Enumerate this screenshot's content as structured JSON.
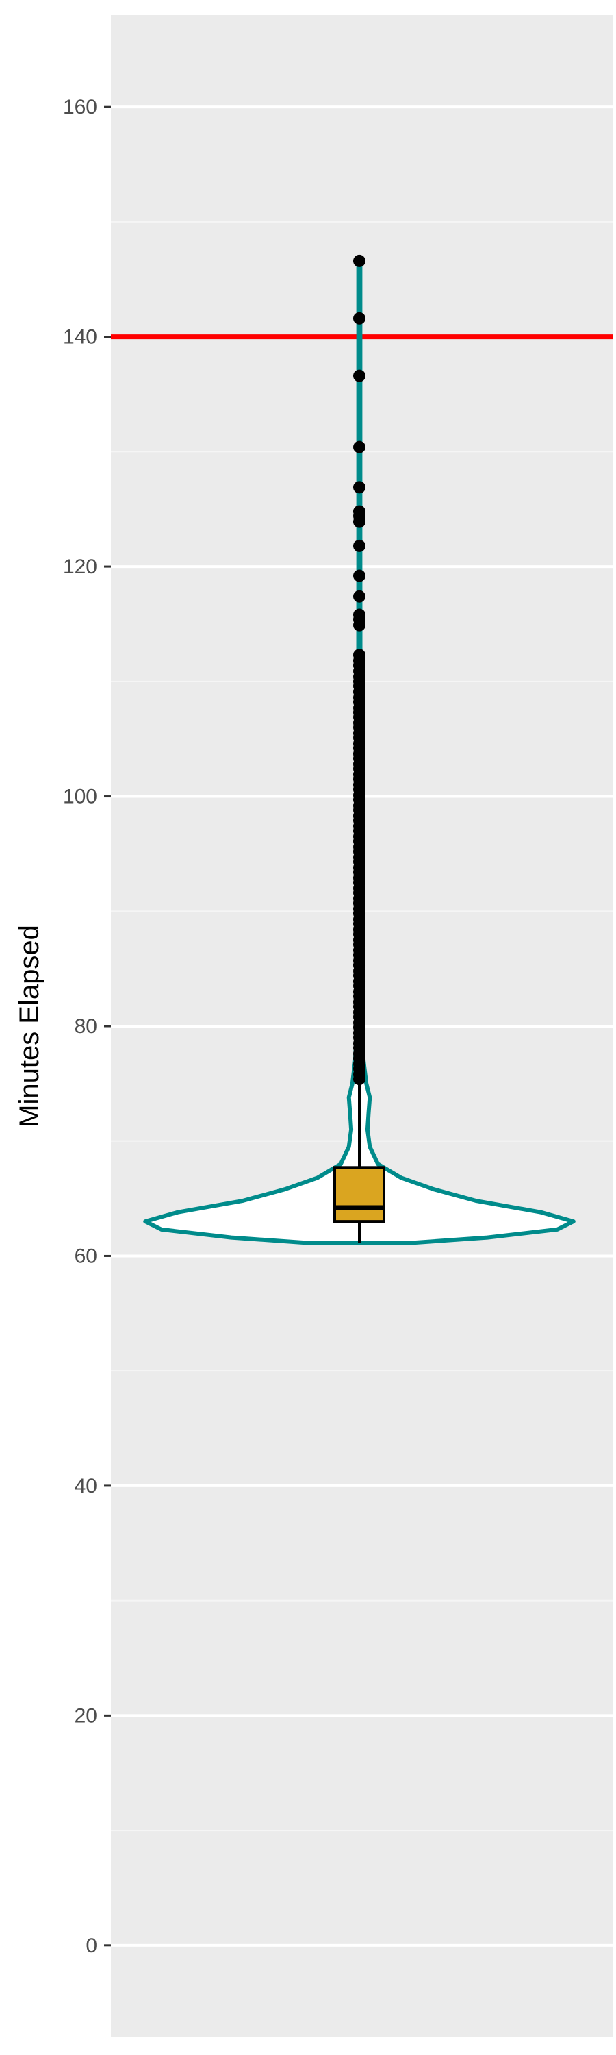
{
  "chart_data": {
    "type": "violin",
    "title": "",
    "xlabel": "",
    "ylabel": "Minutes Elapsed",
    "ylim": [
      -8,
      168
    ],
    "y_ticks": [
      0,
      20,
      40,
      60,
      80,
      100,
      120,
      140,
      160
    ],
    "y_minor_ticks": [
      10,
      30,
      50,
      70,
      90,
      110,
      130,
      150
    ],
    "grid": true,
    "legend": "none",
    "reference_line": {
      "y": 140,
      "color": "#ff0000"
    },
    "violin": {
      "color": "#008b8b",
      "fill": "#ffffff",
      "min": 61.1,
      "max": 146.6,
      "profile": [
        {
          "y": 61.1,
          "w": 0.2
        },
        {
          "y": 61.6,
          "w": 0.55
        },
        {
          "y": 62.3,
          "w": 0.85
        },
        {
          "y": 63.0,
          "w": 0.92
        },
        {
          "y": 63.8,
          "w": 0.78
        },
        {
          "y": 64.8,
          "w": 0.5
        },
        {
          "y": 65.8,
          "w": 0.32
        },
        {
          "y": 66.8,
          "w": 0.18
        },
        {
          "y": 68.0,
          "w": 0.08
        },
        {
          "y": 69.5,
          "w": 0.045
        },
        {
          "y": 71.0,
          "w": 0.035
        },
        {
          "y": 72.5,
          "w": 0.04
        },
        {
          "y": 73.8,
          "w": 0.045
        },
        {
          "y": 75.0,
          "w": 0.03
        },
        {
          "y": 77.0,
          "w": 0.018
        },
        {
          "y": 80.0,
          "w": 0.012
        },
        {
          "y": 83.0,
          "w": 0.01
        },
        {
          "y": 86.0,
          "w": 0.008
        },
        {
          "y": 90.0,
          "w": 0.006
        },
        {
          "y": 100.0,
          "w": 0.005
        },
        {
          "y": 120.0,
          "w": 0.004
        },
        {
          "y": 146.6,
          "w": 0.004
        }
      ]
    },
    "box": {
      "fill": "#daa520",
      "q1": 63.0,
      "median": 64.2,
      "q3": 67.7,
      "whisker_low": 61.1,
      "whisker_high": 75.0
    },
    "outliers": [
      146.6,
      141.6,
      136.6,
      130.4,
      126.9,
      124.8,
      124.4,
      123.9,
      121.8,
      119.2,
      117.4,
      115.8,
      115.4,
      114.9,
      112.3,
      111.8,
      111.4,
      110.9,
      110.4,
      110.0,
      109.6,
      109.1,
      108.6,
      108.2,
      107.7,
      107.3,
      106.9,
      106.4,
      106.0,
      105.5,
      105.1,
      104.6,
      104.2,
      103.7,
      103.3,
      102.8,
      102.4,
      101.9,
      101.5,
      101.0,
      100.6,
      100.1,
      99.7,
      99.2,
      98.8,
      98.3,
      97.9,
      97.4,
      97.0,
      96.5,
      96.1,
      95.6,
      95.2,
      94.7,
      94.3,
      93.8,
      93.4,
      92.9,
      92.5,
      92.0,
      91.6,
      91.1,
      90.7,
      90.2,
      89.8,
      89.3,
      88.9,
      88.4,
      88.0,
      87.5,
      87.1,
      86.6,
      86.2,
      85.7,
      85.3,
      84.8,
      84.4,
      83.9,
      83.5,
      83.0,
      82.6,
      82.1,
      81.7,
      81.2,
      80.8,
      80.3,
      79.9,
      79.4,
      79.0,
      78.5,
      78.1,
      77.6,
      77.2,
      76.7,
      76.3,
      75.8,
      75.4
    ],
    "colors": {
      "panel_background": "#ebebeb",
      "grid_major": "#ffffff",
      "grid_minor": "#f5f5f5",
      "outlier": "#000000"
    }
  }
}
